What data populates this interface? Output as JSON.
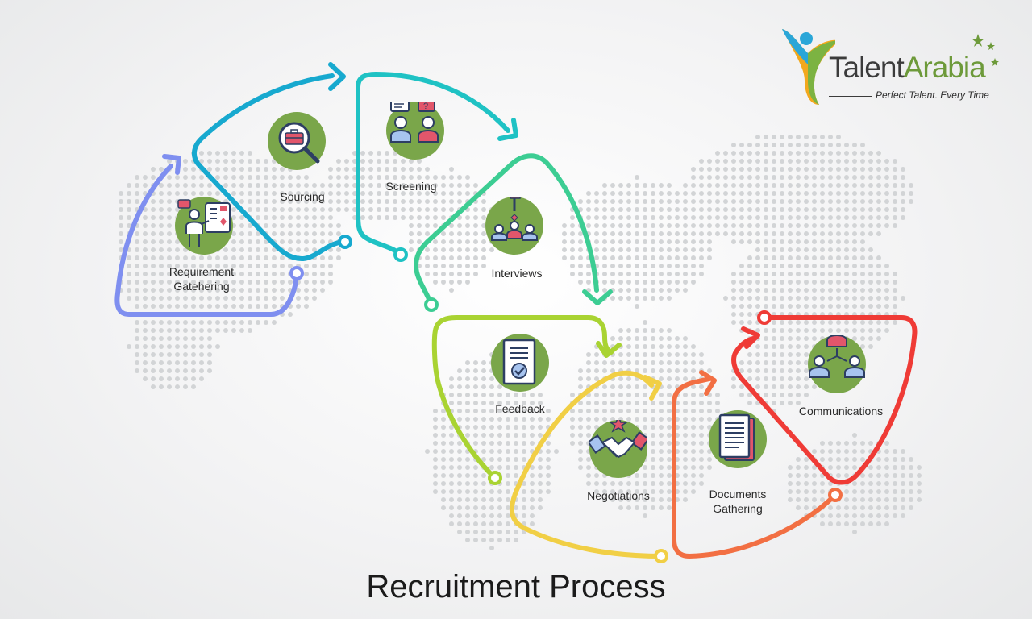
{
  "title": "Recruitment Process",
  "brand": {
    "name_part1": "Talent",
    "name_part2": "Arabia",
    "tagline": "Perfect Talent. Every Time",
    "accent_green": "#6d9a3a"
  },
  "steps": [
    {
      "label": "Requirement Gatehering",
      "line1": "Requirement",
      "line2": "Gatehering",
      "color": "#7f8ff0",
      "icon": "presenter-board-icon"
    },
    {
      "label": "Sourcing",
      "line1": "Sourcing",
      "line2": "",
      "color": "#17a9cf",
      "icon": "magnifier-briefcase-icon"
    },
    {
      "label": "Screening",
      "line1": "Screening",
      "line2": "",
      "color": "#1fc2c4",
      "icon": "chat-people-icon"
    },
    {
      "label": "Interviews",
      "line1": "Interviews",
      "line2": "",
      "color": "#3ccd93",
      "icon": "panel-interview-icon"
    },
    {
      "label": "Feedback",
      "line1": "Feedback",
      "line2": "",
      "color": "#a9d332",
      "icon": "document-check-icon"
    },
    {
      "label": "Negotiations",
      "line1": "Negotiations",
      "line2": "",
      "color": "#f1cf45",
      "icon": "handshake-icon"
    },
    {
      "label": "Documents Gathering",
      "line1": "Documents",
      "line2": "Gathering",
      "color": "#f26f43",
      "icon": "documents-stack-icon"
    },
    {
      "label": "Communications",
      "line1": "Communications",
      "line2": "",
      "color": "#ef3b36",
      "icon": "network-people-icon"
    }
  ],
  "colors": {
    "icon_circle": "#7aa64a",
    "map_dots": "#d2d4d6",
    "title_text": "#1b1b1b"
  }
}
